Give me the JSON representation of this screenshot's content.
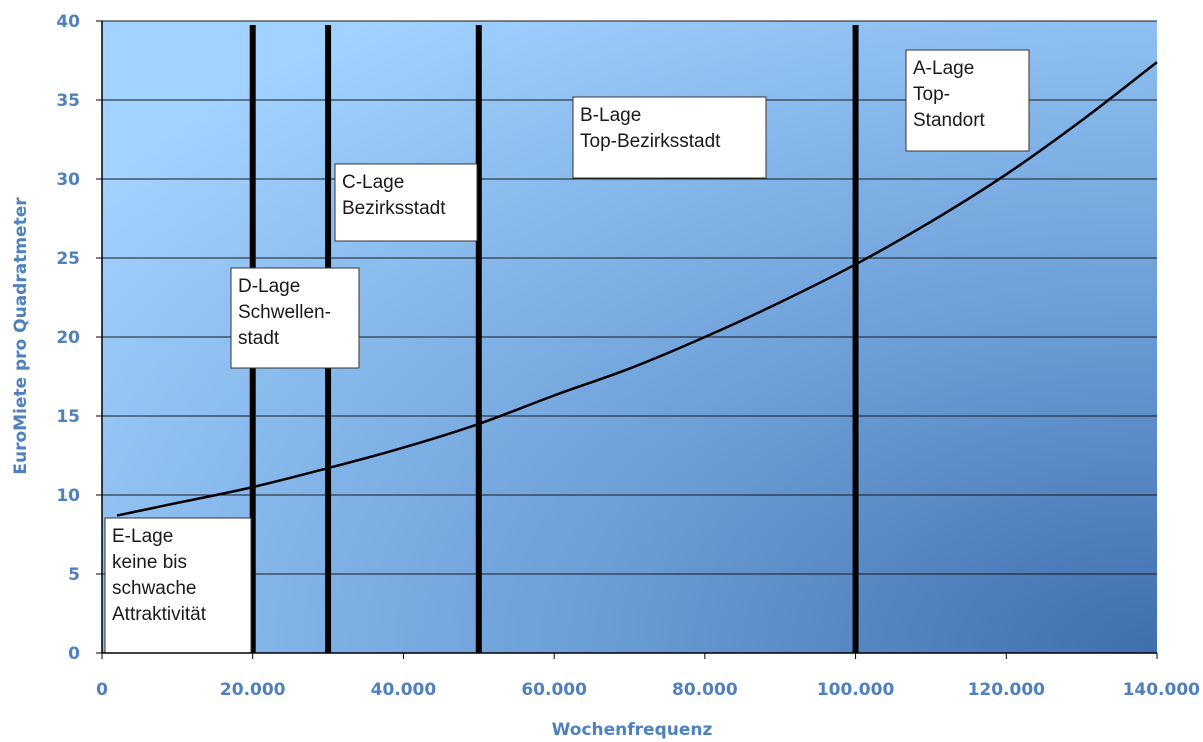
{
  "chart_data": {
    "type": "line",
    "title": "",
    "xlabel": "Wochenfrequenz",
    "ylabel": "EuroMiete pro Quadratmeter",
    "xlim": [
      0,
      140000
    ],
    "ylim": [
      0,
      40
    ],
    "x_ticks": [
      0,
      20000,
      40000,
      60000,
      80000,
      100000,
      120000,
      140000
    ],
    "x_tick_labels": [
      "0",
      "20.000",
      "40.000",
      "60.000",
      "80.000",
      "100.000",
      "120.000",
      "140.000"
    ],
    "y_ticks": [
      0,
      5,
      10,
      15,
      20,
      25,
      30,
      35,
      40
    ],
    "y_tick_labels": [
      "0",
      "5",
      "10",
      "15",
      "20",
      "25",
      "30",
      "35",
      "40"
    ],
    "grid": "horizontal",
    "series": [
      {
        "x": [
          2000,
          10000,
          20000,
          30000,
          40000,
          50000,
          60000,
          70000,
          80000,
          90000,
          100000,
          110000,
          120000,
          130000,
          140000
        ],
        "y": [
          8.7,
          9.5,
          10.5,
          11.7,
          13.0,
          14.5,
          16.3,
          18.0,
          20.0,
          22.2,
          24.6,
          27.3,
          30.3,
          33.7,
          37.4
        ]
      }
    ],
    "vertical_lines": [
      20000,
      30000,
      50000,
      100000
    ],
    "zones": [
      {
        "lines": [
          "E-Lage",
          "keine bis",
          "schwache",
          "Attraktivität"
        ]
      },
      {
        "lines": [
          "D-Lage",
          "Schwellen-",
          "stadt"
        ]
      },
      {
        "lines": [
          "C-Lage",
          "Bezirksstadt"
        ]
      },
      {
        "lines": [
          "B-Lage",
          "Top-Bezirksstadt"
        ]
      },
      {
        "lines": [
          "A-Lage",
          "Top-",
          "Standort"
        ]
      }
    ],
    "colors": {
      "plot_light": "#9dcdfb",
      "plot_dark": "#4a7bb5",
      "grid": "#1a1a1a",
      "line": "#000000",
      "axis_text": "#4f81bd",
      "label_box": "#ffffff"
    }
  }
}
